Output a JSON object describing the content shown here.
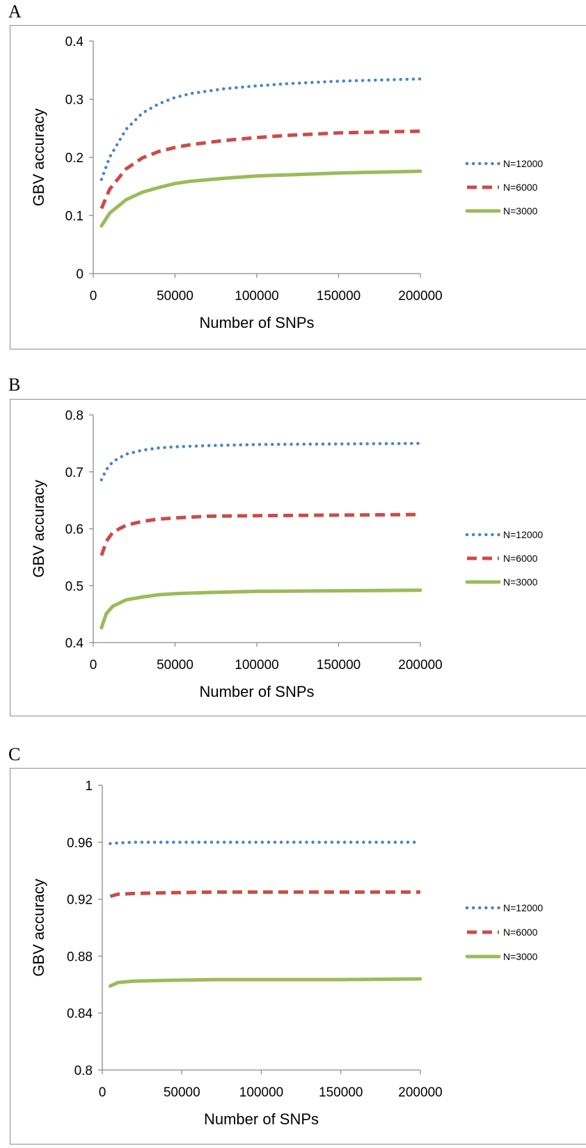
{
  "chart_data": [
    {
      "panel": "A",
      "type": "line",
      "xlabel": "Number of SNPs",
      "ylabel": "GBV accuracy",
      "xlim": [
        0,
        200000
      ],
      "ylim": [
        0,
        0.4
      ],
      "xticks": [
        0,
        50000,
        100000,
        150000,
        200000
      ],
      "yticks": [
        0,
        0.1,
        0.2,
        0.3,
        0.4
      ],
      "ytick_labels": [
        "0",
        "0.1",
        "0.2",
        "0.3",
        "0.4"
      ],
      "legend_position": "right",
      "x": [
        5000,
        10000,
        20000,
        30000,
        40000,
        50000,
        60000,
        80000,
        100000,
        120000,
        150000,
        200000
      ],
      "series": [
        {
          "name": "N=12000",
          "color": "#4a86c5",
          "style": "dotted",
          "values": [
            0.162,
            0.2,
            0.248,
            0.276,
            0.292,
            0.303,
            0.31,
            0.318,
            0.323,
            0.327,
            0.331,
            0.335
          ]
        },
        {
          "name": "N=6000",
          "color": "#cc4b47",
          "style": "dashed",
          "values": [
            0.112,
            0.145,
            0.18,
            0.199,
            0.21,
            0.217,
            0.222,
            0.229,
            0.234,
            0.238,
            0.242,
            0.245
          ]
        },
        {
          "name": "N=3000",
          "color": "#9bbb59",
          "style": "solid",
          "values": [
            0.082,
            0.104,
            0.127,
            0.14,
            0.148,
            0.155,
            0.159,
            0.164,
            0.168,
            0.17,
            0.173,
            0.176
          ]
        }
      ]
    },
    {
      "panel": "B",
      "type": "line",
      "xlabel": "Number of SNPs",
      "ylabel": "GBV accuracy",
      "xlim": [
        0,
        200000
      ],
      "ylim": [
        0.4,
        0.8
      ],
      "xticks": [
        0,
        50000,
        100000,
        150000,
        200000
      ],
      "yticks": [
        0.4,
        0.5,
        0.6,
        0.7,
        0.8
      ],
      "ytick_labels": [
        "0.4",
        "0.5",
        "0.6",
        "0.7",
        "0.8"
      ],
      "legend_position": "right",
      "x": [
        5000,
        8000,
        12000,
        20000,
        30000,
        40000,
        50000,
        70000,
        100000,
        150000,
        200000
      ],
      "series": [
        {
          "name": "N=12000",
          "color": "#4a86c5",
          "style": "dotted",
          "values": [
            0.686,
            0.704,
            0.718,
            0.731,
            0.738,
            0.742,
            0.744,
            0.746,
            0.748,
            0.749,
            0.75
          ]
        },
        {
          "name": "N=6000",
          "color": "#cc4b47",
          "style": "dashed",
          "values": [
            0.553,
            0.578,
            0.594,
            0.606,
            0.613,
            0.617,
            0.619,
            0.622,
            0.623,
            0.624,
            0.625
          ]
        },
        {
          "name": "N=3000",
          "color": "#9bbb59",
          "style": "solid",
          "values": [
            0.426,
            0.451,
            0.464,
            0.475,
            0.48,
            0.484,
            0.486,
            0.488,
            0.49,
            0.491,
            0.492
          ]
        }
      ]
    },
    {
      "panel": "C",
      "type": "line",
      "xlabel": "Number of SNPs",
      "ylabel": "GBV accuracy",
      "xlim": [
        0,
        200000
      ],
      "ylim": [
        0.8,
        1
      ],
      "xticks": [
        0,
        50000,
        100000,
        150000,
        200000
      ],
      "yticks": [
        0.8,
        0.84,
        0.88,
        0.92,
        0.96,
        1
      ],
      "ytick_labels": [
        "0.8",
        "0.84",
        "0.88",
        "0.92",
        "0.96",
        "1"
      ],
      "legend_position": "right",
      "x": [
        5000,
        10000,
        20000,
        40000,
        70000,
        100000,
        150000,
        200000
      ],
      "series": [
        {
          "name": "N=12000",
          "color": "#4a86c5",
          "style": "dotted",
          "values": [
            0.959,
            0.9595,
            0.96,
            0.96,
            0.96,
            0.96,
            0.96,
            0.96
          ]
        },
        {
          "name": "N=6000",
          "color": "#cc4b47",
          "style": "dashed",
          "values": [
            0.922,
            0.9235,
            0.924,
            0.9245,
            0.925,
            0.925,
            0.925,
            0.925
          ]
        },
        {
          "name": "N=3000",
          "color": "#9bbb59",
          "style": "solid",
          "values": [
            0.859,
            0.8615,
            0.8625,
            0.863,
            0.8635,
            0.8635,
            0.8635,
            0.864
          ]
        }
      ]
    }
  ]
}
